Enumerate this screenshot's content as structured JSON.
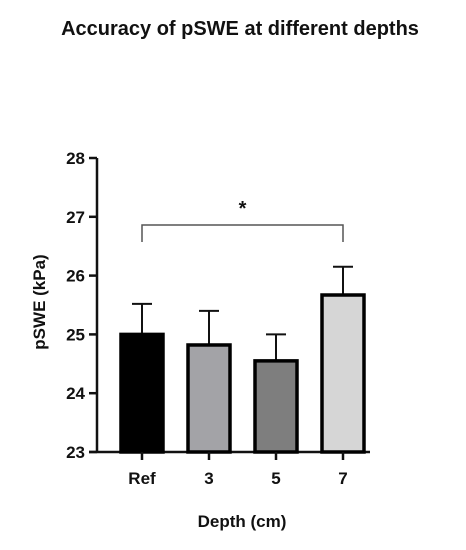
{
  "chart_data": {
    "type": "bar",
    "title": "Accuracy of pSWE at different depths",
    "xlabel": "Depth (cm)",
    "ylabel": "pSWE (kPa)",
    "categories": [
      "Ref",
      "3",
      "5",
      "7"
    ],
    "values": [
      25.0,
      24.82,
      24.55,
      25.67
    ],
    "error_upper": [
      0.52,
      0.58,
      0.45,
      0.48
    ],
    "bar_colors": [
      "#000000",
      "#a3a3a7",
      "#7e7e7e",
      "#d6d6d6"
    ],
    "ylim": [
      23,
      28
    ],
    "yticks": [
      "23",
      "24",
      "25",
      "26",
      "27",
      "28"
    ],
    "grid": false,
    "significance": {
      "from": "Ref",
      "to": "7",
      "label": "*"
    }
  }
}
